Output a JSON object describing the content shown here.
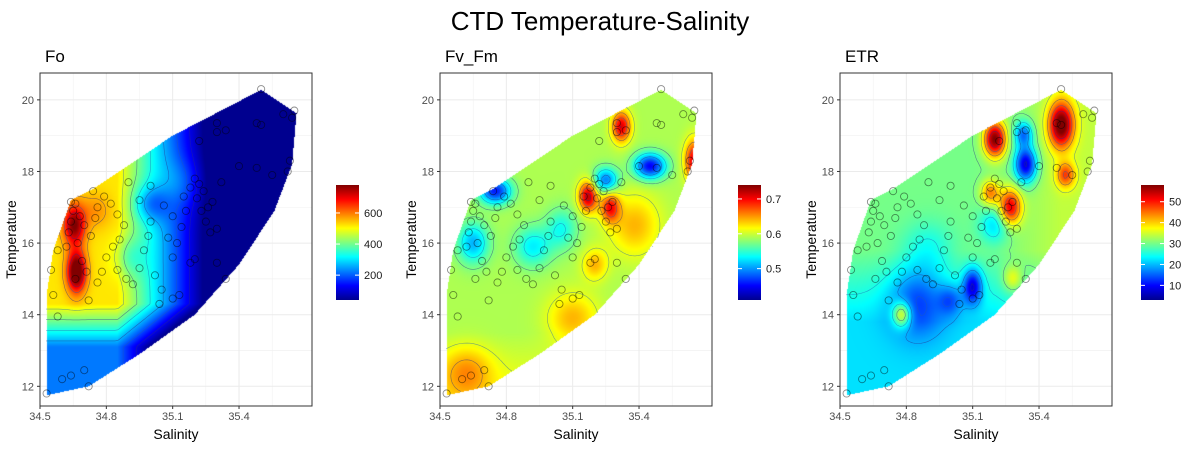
{
  "title": "CTD Temperature-Salinity",
  "chart_data": [
    {
      "type": "heatmap",
      "title": "Fo",
      "xlabel": "Salinity",
      "ylabel": "Temperature",
      "xlim": [
        34.5,
        35.73
      ],
      "ylim": [
        11.45,
        20.75
      ],
      "xticks": [
        "34.5",
        "34.8",
        "35.1",
        "35.4"
      ],
      "yticks": [
        "12",
        "14",
        "16",
        "18",
        "20"
      ],
      "legend_ticks": [
        "200",
        "400",
        "600"
      ],
      "legend_range": [
        40,
        780
      ],
      "colormap": "jet",
      "grid": true,
      "legend_position": "right"
    },
    {
      "type": "heatmap",
      "title": "Fv_Fm",
      "xlabel": "Salinity",
      "ylabel": "Temperature",
      "xlim": [
        34.5,
        35.73
      ],
      "ylim": [
        11.45,
        20.75
      ],
      "xticks": [
        "34.5",
        "34.8",
        "35.1",
        "35.4"
      ],
      "yticks": [
        "12",
        "14",
        "16",
        "18",
        "20"
      ],
      "legend_ticks": [
        "0.5",
        "0.6",
        "0.7"
      ],
      "legend_range": [
        0.41,
        0.74
      ],
      "colormap": "jet",
      "grid": true,
      "legend_position": "right"
    },
    {
      "type": "heatmap",
      "title": "ETR",
      "xlabel": "Salinity",
      "ylabel": "Temperature",
      "xlim": [
        34.5,
        35.73
      ],
      "ylim": [
        11.45,
        20.75
      ],
      "xticks": [
        "34.5",
        "34.8",
        "35.1",
        "35.4"
      ],
      "yticks": [
        "12",
        "14",
        "16",
        "18",
        "20"
      ],
      "legend_ticks": [
        "10",
        "20",
        "30",
        "40",
        "50"
      ],
      "legend_range": [
        3,
        58
      ],
      "colormap": "jet",
      "grid": true,
      "legend_position": "right"
    }
  ],
  "stations": [
    [
      34.53,
      11.8
    ],
    [
      34.56,
      14.55
    ],
    [
      34.58,
      15.8
    ],
    [
      34.55,
      15.25
    ],
    [
      34.6,
      12.2
    ],
    [
      34.64,
      12.3
    ],
    [
      34.7,
      12.45
    ],
    [
      34.72,
      12.0
    ],
    [
      34.58,
      13.95
    ],
    [
      34.62,
      15.9
    ],
    [
      34.63,
      16.3
    ],
    [
      34.64,
      16.6
    ],
    [
      34.65,
      16.9
    ],
    [
      34.66,
      17.1
    ],
    [
      34.64,
      17.15
    ],
    [
      34.68,
      16.75
    ],
    [
      34.7,
      16.5
    ],
    [
      34.67,
      16.0
    ],
    [
      34.69,
      15.5
    ],
    [
      34.71,
      15.2
    ],
    [
      34.66,
      15.0
    ],
    [
      34.73,
      16.2
    ],
    [
      34.75,
      16.7
    ],
    [
      34.76,
      17.0
    ],
    [
      34.74,
      17.45
    ],
    [
      34.79,
      17.3
    ],
    [
      34.82,
      17.1
    ],
    [
      34.85,
      16.8
    ],
    [
      34.88,
      16.5
    ],
    [
      34.86,
      16.1
    ],
    [
      34.83,
      15.9
    ],
    [
      34.8,
      15.6
    ],
    [
      34.78,
      15.2
    ],
    [
      34.76,
      14.9
    ],
    [
      34.72,
      14.4
    ],
    [
      34.85,
      15.25
    ],
    [
      34.89,
      15.0
    ],
    [
      34.92,
      14.85
    ],
    [
      34.95,
      15.3
    ],
    [
      34.97,
      15.8
    ],
    [
      34.99,
      16.2
    ],
    [
      35.0,
      16.6
    ],
    [
      35.02,
      15.1
    ],
    [
      35.05,
      14.7
    ],
    [
      35.04,
      14.3
    ],
    [
      35.1,
      14.45
    ],
    [
      35.13,
      14.55
    ],
    [
      35.1,
      15.6
    ],
    [
      35.12,
      16.0
    ],
    [
      35.14,
      16.45
    ],
    [
      35.16,
      16.9
    ],
    [
      35.15,
      17.3
    ],
    [
      35.18,
      17.55
    ],
    [
      35.2,
      17.8
    ],
    [
      35.22,
      17.65
    ],
    [
      35.21,
      17.25
    ],
    [
      35.23,
      16.9
    ],
    [
      35.25,
      16.6
    ],
    [
      35.27,
      16.3
    ],
    [
      35.26,
      17.0
    ],
    [
      35.28,
      17.15
    ],
    [
      35.3,
      16.4
    ],
    [
      35.32,
      17.7
    ],
    [
      35.24,
      17.45
    ],
    [
      35.22,
      18.85
    ],
    [
      35.3,
      19.1
    ],
    [
      35.3,
      19.35
    ],
    [
      35.34,
      19.15
    ],
    [
      35.48,
      19.35
    ],
    [
      35.5,
      19.3
    ],
    [
      35.5,
      20.3
    ],
    [
      35.6,
      19.6
    ],
    [
      35.64,
      19.5
    ],
    [
      35.65,
      19.7
    ],
    [
      35.63,
      18.3
    ],
    [
      35.62,
      18.0
    ],
    [
      35.55,
      17.9
    ],
    [
      35.48,
      18.1
    ],
    [
      35.4,
      18.15
    ],
    [
      35.18,
      15.45
    ],
    [
      35.2,
      15.55
    ],
    [
      35.3,
      15.45
    ],
    [
      35.34,
      15.0
    ],
    [
      35.08,
      16.15
    ],
    [
      35.0,
      17.6
    ],
    [
      34.9,
      17.7
    ],
    [
      34.95,
      17.2
    ],
    [
      35.06,
      17.05
    ],
    [
      35.1,
      16.75
    ]
  ]
}
